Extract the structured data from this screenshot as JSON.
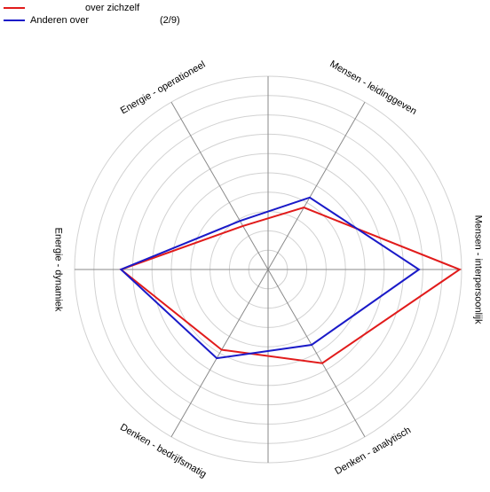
{
  "chart_data": {
    "type": "radar",
    "title": "",
    "axes": [
      "Mensen - leidinggeven",
      "Mensen - interpersoonlijk",
      "Denken - analytisch",
      "Denken - bedrijfsmatig",
      "Energie - dynamiek",
      "Energie - operationeel"
    ],
    "rmax": 10,
    "rings": 10,
    "grid": true,
    "legend_position": "top-left",
    "series": [
      {
        "name": "over zichzelf",
        "color": "#e11b1b",
        "values": [
          3.7,
          9.9,
          5.6,
          4.8,
          7.6,
          2.6
        ]
      },
      {
        "name": "Anderen over",
        "color": "#1a1ac8",
        "values": [
          4.3,
          7.8,
          4.5,
          5.3,
          7.6,
          2.9
        ]
      }
    ]
  },
  "legend": {
    "items": [
      {
        "label": "over zichzelf",
        "color": "#e11b1b",
        "count": ""
      },
      {
        "label": "Anderen over",
        "color": "#1a1ac8",
        "count": "(2/9)"
      }
    ]
  }
}
